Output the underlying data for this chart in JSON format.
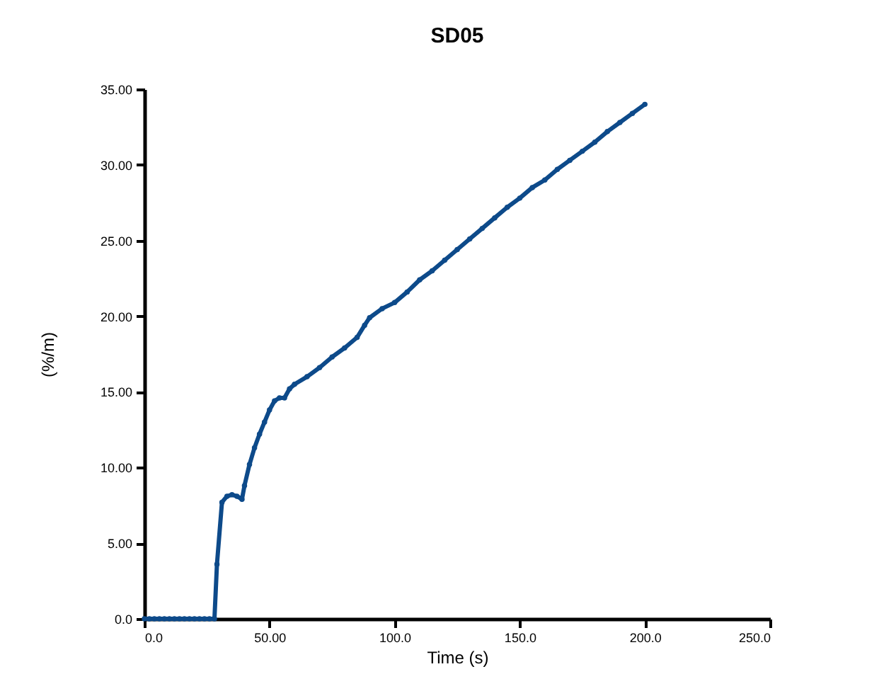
{
  "chart_data": {
    "type": "line",
    "title": "SD05",
    "xlabel": "Time (s)",
    "ylabel": "(%/m)",
    "x": [
      0,
      2,
      4,
      6,
      8,
      10,
      12,
      14,
      16,
      18,
      20,
      22,
      24,
      26,
      28,
      29,
      31,
      33,
      35,
      37,
      39,
      40,
      42,
      44,
      46,
      48,
      50,
      52,
      54,
      56,
      58,
      60,
      65,
      70,
      75,
      80,
      85,
      88,
      90,
      95,
      100,
      105,
      110,
      115,
      120,
      125,
      130,
      135,
      140,
      145,
      150,
      155,
      160,
      165,
      170,
      175,
      180,
      185,
      190,
      195,
      200
    ],
    "series": [
      {
        "color": "#0d4a8a",
        "values": [
          0,
          0,
          0,
          0,
          0,
          0,
          0,
          0,
          0,
          0,
          0,
          0,
          0,
          0,
          0,
          3.6,
          7.7,
          8.1,
          8.2,
          8.1,
          7.9,
          8.8,
          10.2,
          11.3,
          12.2,
          13.0,
          13.8,
          14.4,
          14.6,
          14.6,
          15.2,
          15.5,
          16.0,
          16.6,
          17.3,
          17.9,
          18.6,
          19.4,
          19.9,
          20.5,
          20.9,
          21.6,
          22.4,
          23.0,
          23.7,
          24.4,
          25.1,
          25.8,
          26.5,
          27.2,
          27.8,
          28.5,
          29.0,
          29.7,
          30.3,
          30.9,
          31.5,
          32.2,
          32.8,
          33.4,
          34.0
        ]
      }
    ],
    "xlim": [
      0,
      250
    ],
    "ylim": [
      0,
      35
    ],
    "xticks": [
      {
        "value": 0,
        "label": "0.0"
      },
      {
        "value": 50,
        "label": "50.00"
      },
      {
        "value": 100,
        "label": "100.0"
      },
      {
        "value": 150,
        "label": "150.0"
      },
      {
        "value": 200,
        "label": "200.0"
      },
      {
        "value": 250,
        "label": "250.0"
      }
    ],
    "yticks": [
      {
        "value": 0,
        "label": "0.0"
      },
      {
        "value": 5,
        "label": "5.00"
      },
      {
        "value": 10,
        "label": "10.00"
      },
      {
        "value": 15,
        "label": "15.00"
      },
      {
        "value": 20,
        "label": "20.00"
      },
      {
        "value": 25,
        "label": "25.00"
      },
      {
        "value": 30,
        "label": "30.00"
      },
      {
        "value": 35,
        "label": "35.00"
      }
    ],
    "marker": "circle",
    "line_style": "solid",
    "grid": false
  }
}
